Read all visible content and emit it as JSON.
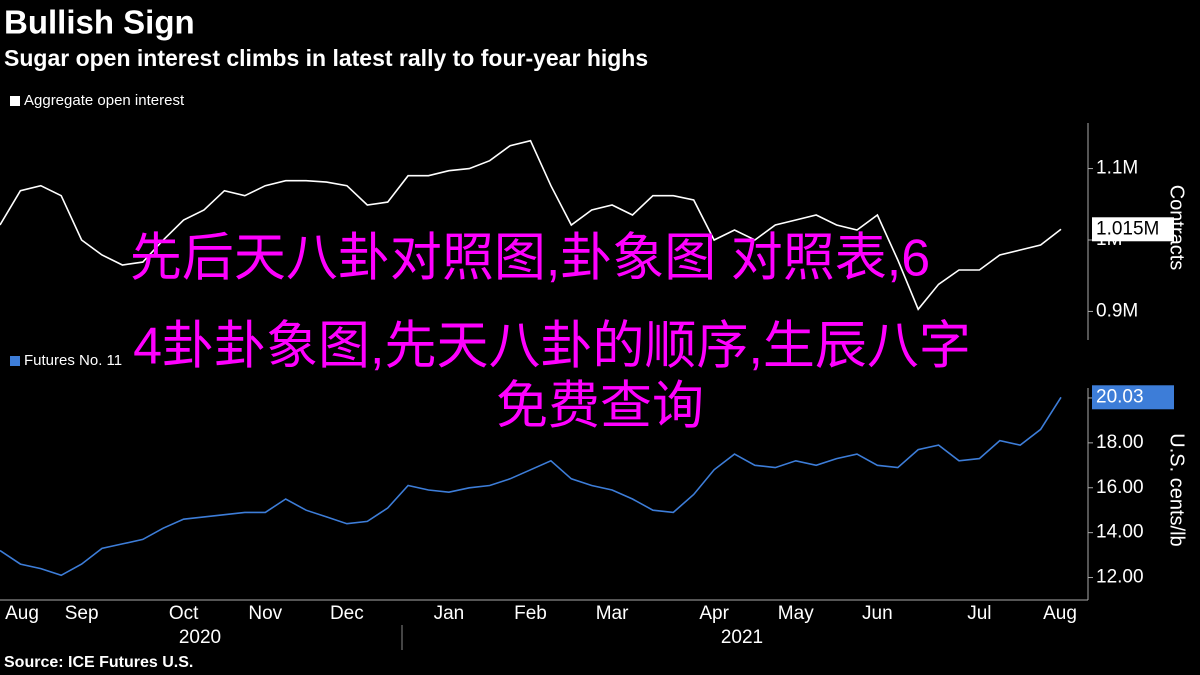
{
  "title": "Bullish Sign",
  "subtitle": "Sugar open interest climbs in latest rally to four-year highs",
  "source": "Source: ICE Futures U.S.",
  "overlay_text": [
    "先后天八卦对照图,卦象图 对照表,6",
    "4卦卦象图,先天八卦的顺序,生辰八字",
    "免费查询"
  ],
  "chart_data": [
    {
      "type": "line",
      "y_label": "Contracts",
      "ylim": [
        860000,
        1175000
      ],
      "yticks": [
        {
          "value": 900000,
          "label": "0.9M"
        },
        {
          "value": 1000000,
          "label": "1M"
        },
        {
          "value": 1100000,
          "label": "1.1M"
        }
      ],
      "grid": false,
      "series": [
        {
          "name": "Aggregate open interest",
          "color": "#ffffff",
          "last_label": "1.015M",
          "values": [
            1021000,
            1069000,
            1076000,
            1062000,
            1000000,
            979000,
            965000,
            969000,
            1000000,
            1028000,
            1042000,
            1069000,
            1062000,
            1076000,
            1083000,
            1083000,
            1081000,
            1076000,
            1049000,
            1053000,
            1090000,
            1090000,
            1097000,
            1100000,
            1111000,
            1132000,
            1139000,
            1076000,
            1021000,
            1042000,
            1049000,
            1035000,
            1062000,
            1062000,
            1056000,
            1000000,
            1014000,
            1000000,
            1021000,
            1028000,
            1035000,
            1021000,
            1014000,
            1035000,
            972000,
            903000,
            938000,
            958000,
            958000,
            979000,
            986000,
            993000,
            1015000
          ]
        }
      ]
    },
    {
      "type": "line",
      "y_label": "U.S. cents/lb",
      "ylim": [
        11,
        20.8
      ],
      "yticks": [
        {
          "value": 12,
          "label": "12.00"
        },
        {
          "value": 14,
          "label": "14.00"
        },
        {
          "value": 16,
          "label": "16.00"
        },
        {
          "value": 18,
          "label": "18.00"
        },
        {
          "value": 20,
          "label": "20.00"
        }
      ],
      "grid": false,
      "categories": [
        null,
        "Aug",
        null,
        null,
        "Sep",
        null,
        null,
        null,
        null,
        "Oct",
        null,
        null,
        null,
        "Nov",
        null,
        null,
        null,
        "Dec",
        null,
        null,
        null,
        null,
        "Jan",
        null,
        null,
        null,
        "Feb",
        null,
        null,
        null,
        "Mar",
        null,
        null,
        null,
        null,
        "Apr",
        null,
        null,
        null,
        "May",
        null,
        null,
        null,
        "Jun",
        null,
        null,
        null,
        null,
        "Jul",
        null,
        null,
        null,
        "Aug"
      ],
      "year_labels": [
        "2020",
        "2021"
      ],
      "series": [
        {
          "name": "Futures No. 11",
          "color": "#3d7dd8",
          "values": [
            13.2,
            12.6,
            12.4,
            12.1,
            12.6,
            13.3,
            13.5,
            13.7,
            14.2,
            14.6,
            14.7,
            14.8,
            14.9,
            14.9,
            15.5,
            15.0,
            14.7,
            14.4,
            14.5,
            15.1,
            16.1,
            15.9,
            15.8,
            16.0,
            16.1,
            16.4,
            16.8,
            17.2,
            16.4,
            16.1,
            15.9,
            15.5,
            15.0,
            14.9,
            15.7,
            16.8,
            17.5,
            17.0,
            16.9,
            17.2,
            17.0,
            17.3,
            17.5,
            17.0,
            16.9,
            17.7,
            17.9,
            17.2,
            17.3,
            18.1,
            17.9,
            18.6,
            20.03
          ]
        }
      ]
    }
  ]
}
